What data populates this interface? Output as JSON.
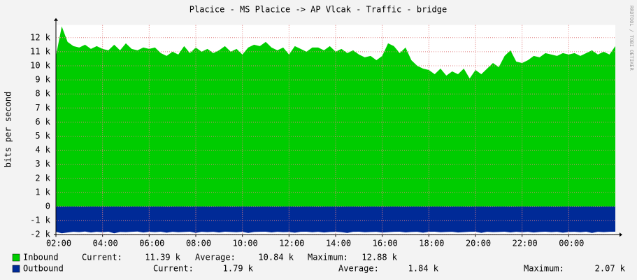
{
  "chart_data": {
    "type": "area",
    "title": "Placice - MS Placice -> AP Vlcak - Traffic - bridge",
    "y_label": "bits per second",
    "watermark": "RRDTOOL / TOBI OETIKER",
    "xlim": [
      2,
      26
    ],
    "xticks": [
      {
        "value": 2,
        "label": "02:00"
      },
      {
        "value": 4,
        "label": "04:00"
      },
      {
        "value": 6,
        "label": "06:00"
      },
      {
        "value": 8,
        "label": "08:00"
      },
      {
        "value": 10,
        "label": "10:00"
      },
      {
        "value": 12,
        "label": "12:00"
      },
      {
        "value": 14,
        "label": "14:00"
      },
      {
        "value": 16,
        "label": "16:00"
      },
      {
        "value": 18,
        "label": "18:00"
      },
      {
        "value": 20,
        "label": "20:00"
      },
      {
        "value": 22,
        "label": "22:00"
      },
      {
        "value": 24,
        "label": "00:00"
      }
    ],
    "ylim": [
      -2000,
      12900
    ],
    "yticks": [
      {
        "value": -2000,
        "label": "-2 k"
      },
      {
        "value": -1000,
        "label": "-1 k"
      },
      0,
      {
        "value": 1000,
        "label": "1 k"
      },
      {
        "value": 2000,
        "label": "2 k"
      },
      {
        "value": 3000,
        "label": "3 k"
      },
      {
        "value": 4000,
        "label": "4 k"
      },
      {
        "value": 5000,
        "label": "5 k"
      },
      {
        "value": 6000,
        "label": "6 k"
      },
      {
        "value": 7000,
        "label": "7 k"
      },
      {
        "value": 8000,
        "label": "8 k"
      },
      {
        "value": 9000,
        "label": "9 k"
      },
      {
        "value": 10000,
        "label": "10 k"
      },
      {
        "value": 11000,
        "label": "11 k"
      },
      {
        "value": 12000,
        "label": "12 k"
      }
    ],
    "grid": true,
    "x": [
      2,
      2.25,
      2.5,
      2.75,
      3,
      3.25,
      3.5,
      3.75,
      4,
      4.25,
      4.5,
      4.75,
      5,
      5.25,
      5.5,
      5.75,
      6,
      6.25,
      6.5,
      6.75,
      7,
      7.25,
      7.5,
      7.75,
      8,
      8.25,
      8.5,
      8.75,
      9,
      9.25,
      9.5,
      9.75,
      10,
      10.25,
      10.5,
      10.75,
      11,
      11.25,
      11.5,
      11.75,
      12,
      12.25,
      12.5,
      12.75,
      13,
      13.25,
      13.5,
      13.75,
      14,
      14.25,
      14.5,
      14.75,
      15,
      15.25,
      15.5,
      15.75,
      16,
      16.25,
      16.5,
      16.75,
      17,
      17.25,
      17.5,
      17.75,
      18,
      18.25,
      18.5,
      18.75,
      19,
      19.25,
      19.5,
      19.75,
      20,
      20.25,
      20.5,
      20.75,
      21,
      21.25,
      21.5,
      21.75,
      22,
      22.25,
      22.5,
      22.75,
      23,
      23.25,
      23.5,
      23.75,
      24,
      24.25,
      24.5,
      24.75,
      25,
      25.25,
      25.5,
      25.75,
      26
    ],
    "series": [
      {
        "name": "Inbound",
        "color": "#00cc00",
        "values": [
          10700,
          12800,
          11700,
          11400,
          11300,
          11500,
          11200,
          11400,
          11200,
          11100,
          11500,
          11100,
          11600,
          11200,
          11100,
          11300,
          11200,
          11300,
          10900,
          10700,
          11000,
          10800,
          11400,
          10900,
          11300,
          11000,
          11200,
          10900,
          11100,
          11400,
          11000,
          11200,
          10800,
          11300,
          11500,
          11400,
          11700,
          11300,
          11100,
          11300,
          10800,
          11400,
          11200,
          11000,
          11300,
          11300,
          11100,
          11400,
          11000,
          11200,
          10900,
          11100,
          10800,
          10600,
          10700,
          10400,
          10700,
          11600,
          11400,
          10900,
          11300,
          10400,
          10000,
          9800,
          9700,
          9400,
          9800,
          9300,
          9600,
          9400,
          9800,
          9100,
          9700,
          9400,
          9800,
          10200,
          9900,
          10700,
          11100,
          10300,
          10200,
          10400,
          10700,
          10600,
          10900,
          10800,
          10700,
          10900,
          10800,
          10900,
          10700,
          10900,
          11100,
          10800,
          11000,
          10800,
          11400
        ],
        "stats": [
          {
            "label": "Current:",
            "value": "11.39 k"
          },
          {
            "label": "Average:",
            "value": "10.84 k"
          },
          {
            "label": "Maximum:",
            "value": "12.88 k"
          }
        ]
      },
      {
        "name": "Outbound",
        "color": "#002a97",
        "values": [
          -1800,
          -1900,
          -1850,
          -1800,
          -1820,
          -1780,
          -1850,
          -1800,
          -1830,
          -1790,
          -1900,
          -1810,
          -1820,
          -1800,
          -1780,
          -1850,
          -1800,
          -1820,
          -1790,
          -1860,
          -1800,
          -1830,
          -1810,
          -1790,
          -1870,
          -1800,
          -1820,
          -1800,
          -1850,
          -1790,
          -1810,
          -1830,
          -1800,
          -1880,
          -1810,
          -1800,
          -1790,
          -1840,
          -1800,
          -1820,
          -1810,
          -1860,
          -1800,
          -1790,
          -1830,
          -1800,
          -1850,
          -1810,
          -1800,
          -1820,
          -1880,
          -1800,
          -1790,
          -1830,
          -1810,
          -1800,
          -1850,
          -1820,
          -1800,
          -1790,
          -1840,
          -1810,
          -1800,
          -1860,
          -1800,
          -1790,
          -1830,
          -1810,
          -1800,
          -1850,
          -1820,
          -1800,
          -1790,
          -1870,
          -1800,
          -1820,
          -1810,
          -1790,
          -1840,
          -1800,
          -1830,
          -1800,
          -1850,
          -1810,
          -1790,
          -1820,
          -1800,
          -1860,
          -1810,
          -1800,
          -1830,
          -1790,
          -1880,
          -1800,
          -1820,
          -1800,
          -1790
        ],
        "stats": [
          {
            "label": "Current:",
            "value": "1.79 k"
          },
          {
            "label": "Average:",
            "value": "1.84 k"
          },
          {
            "label": "Maximum:",
            "value": "2.07 k"
          }
        ]
      }
    ]
  }
}
